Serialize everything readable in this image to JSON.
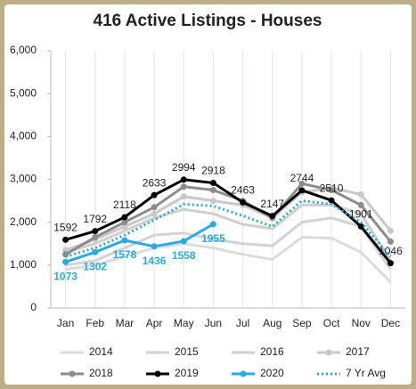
{
  "chart_data": {
    "type": "line",
    "title": "416 Active Listings - Houses",
    "categories": [
      "Jan",
      "Feb",
      "Mar",
      "Apr",
      "May",
      "Jun",
      "Jul",
      "Aug",
      "Sep",
      "Oct",
      "Nov",
      "Dec"
    ],
    "ylim": [
      0,
      6000
    ],
    "yticks": [
      0,
      {
        "value": 1000,
        "label": "1,000"
      },
      {
        "value": 2000,
        "label": "2,000"
      },
      {
        "value": 3000,
        "label": "3,000"
      },
      {
        "value": 4000,
        "label": "4,000"
      },
      {
        "value": 5000,
        "label": "5,000"
      },
      {
        "value": 6000,
        "label": "6,000"
      }
    ],
    "grid": "x",
    "legend": "bottom",
    "series": [
      {
        "name": "2014",
        "color": "#dcdcdc",
        "markers": false,
        "style": "solid",
        "values": [
          900,
          1000,
          1200,
          1400,
          1500,
          1400,
          1250,
          1130,
          1650,
          1630,
          1300,
          600
        ]
      },
      {
        "name": "2015",
        "color": "#d3d3d3",
        "markers": false,
        "style": "solid",
        "values": [
          1000,
          1100,
          1400,
          1700,
          1750,
          1600,
          1500,
          1450,
          2000,
          2100,
          1900,
          900
        ]
      },
      {
        "name": "2016",
        "color": "#cfcfcf",
        "markers": false,
        "style": "solid",
        "values": [
          1300,
          1500,
          1800,
          2100,
          2300,
          2200,
          1950,
          1850,
          2400,
          2400,
          2200,
          1100
        ]
      },
      {
        "name": "2017",
        "color": "#c8c8c8",
        "markers": true,
        "style": "solid",
        "values": [
          1350,
          1600,
          1900,
          2200,
          2600,
          2500,
          2400,
          2100,
          2700,
          2800,
          2650,
          1800
        ]
      },
      {
        "name": "2018",
        "color": "#8c8c8c",
        "markers": true,
        "style": "solid",
        "values": [
          1250,
          1650,
          2000,
          2350,
          2830,
          2750,
          2500,
          2100,
          2900,
          2750,
          2400,
          1550
        ]
      },
      {
        "name": "2019",
        "color": "#000000",
        "markers": true,
        "style": "solid",
        "labels": "above",
        "values": [
          1592,
          1792,
          2118,
          2633,
          2994,
          2918,
          2463,
          2147,
          2744,
          2510,
          1901,
          1046
        ]
      },
      {
        "name": "2020",
        "color": "#29abe2",
        "markers": true,
        "style": "solid",
        "labels": "below",
        "values": [
          1073,
          1302,
          1578,
          1436,
          1558,
          1955,
          null,
          null,
          null,
          null,
          null,
          null
        ]
      },
      {
        "name": "7 Yr Avg",
        "color": "#29abe2",
        "markers": false,
        "style": "dotted",
        "values": [
          1200,
          1400,
          1700,
          2050,
          2420,
          2380,
          2150,
          1900,
          2500,
          2420,
          2000,
          1200
        ]
      }
    ]
  }
}
